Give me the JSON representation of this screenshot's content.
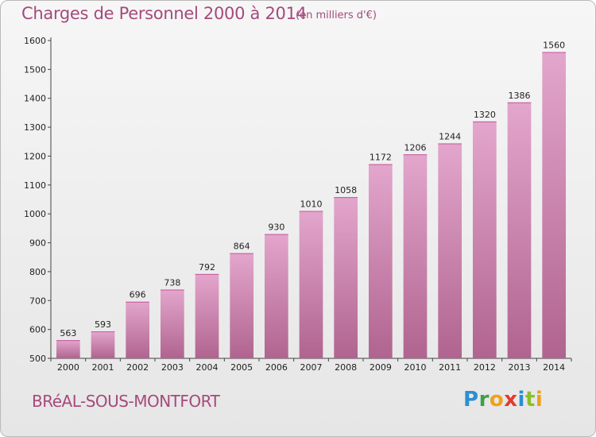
{
  "header": {
    "title": "Charges de Personnel 2000 à 2014",
    "subtitle": "(en milliers d'€)"
  },
  "footer": {
    "town": "BRéAL-SOUS-MONTFORT",
    "logo_letters": [
      {
        "ch": "P",
        "color": "#2b8fd1"
      },
      {
        "ch": "r",
        "color": "#3aa14a"
      },
      {
        "ch": "o",
        "color": "#f0a11a"
      },
      {
        "ch": "x",
        "color": "#e53a2b"
      },
      {
        "ch": "i",
        "color": "#2b8fd1"
      },
      {
        "ch": "t",
        "color": "#8bbf2a"
      },
      {
        "ch": "i",
        "color": "#f0a11a"
      }
    ]
  },
  "chart_data": {
    "type": "bar",
    "categories": [
      "2000",
      "2001",
      "2002",
      "2003",
      "2004",
      "2005",
      "2006",
      "2007",
      "2008",
      "2009",
      "2010",
      "2011",
      "2012",
      "2013",
      "2014"
    ],
    "values": [
      563,
      593,
      696,
      738,
      792,
      864,
      930,
      1010,
      1058,
      1172,
      1206,
      1244,
      1320,
      1386,
      1560
    ],
    "value_labels": [
      "563",
      "593",
      "696",
      "738",
      "792",
      "864",
      "930",
      "1010",
      "1058",
      "1172",
      "1206",
      "1244",
      "1320",
      "1386",
      "1560"
    ],
    "yticks": [
      500,
      600,
      700,
      800,
      900,
      1000,
      1100,
      1200,
      1300,
      1400,
      1500,
      1600
    ],
    "ytick_labels": [
      "500",
      "600",
      "700",
      "800",
      "900",
      "1000",
      "1100",
      "1200",
      "1300",
      "1400",
      "1500",
      "1600"
    ],
    "ylim": [
      500,
      1600
    ],
    "bar_color_top": "#e3a6cc",
    "bar_color_bottom": "#b0648f",
    "grid": false
  }
}
